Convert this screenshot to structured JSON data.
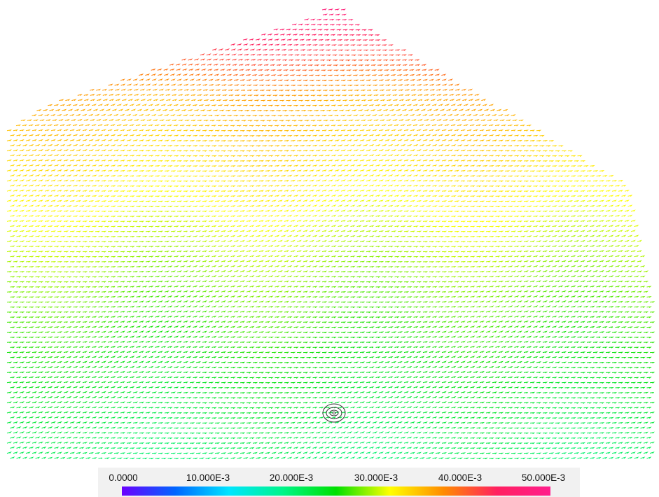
{
  "colorbar": {
    "ticks": [
      "0.0000",
      "10.000E-3",
      "20.000E-3",
      "30.000E-3",
      "40.000E-3",
      "50.000E-3"
    ],
    "colors": [
      "#6a00ff",
      "#0066ff",
      "#00e5ff",
      "#00f58a",
      "#00e000",
      "#ffff00",
      "#ff8c00",
      "#ff2060",
      "#ff1e8c"
    ]
  },
  "field": {
    "min": 0,
    "max": 0.05,
    "arrow_color_low": "#28e628",
    "arrow_color_high": "#ff2a78"
  }
}
